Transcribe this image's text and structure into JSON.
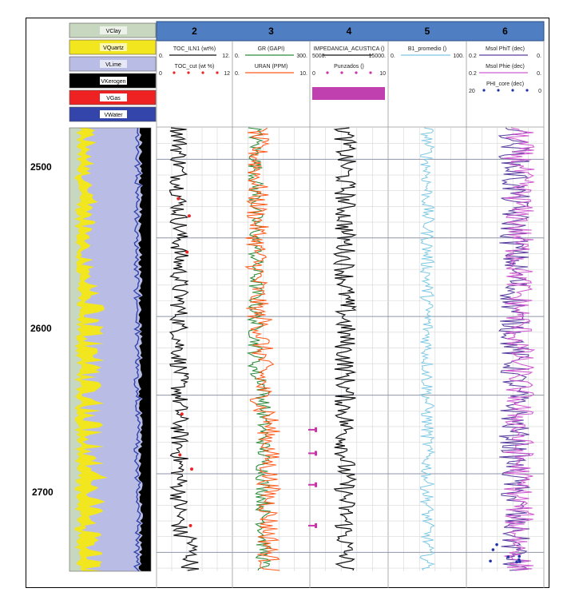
{
  "chart_data": {
    "type": "line",
    "title": "",
    "depth_axis": {
      "ticks": [
        "2500",
        "2600",
        "2700"
      ],
      "range": [
        2480,
        2762
      ]
    },
    "track_numbers": [
      "2",
      "3",
      "4",
      "5",
      "6"
    ],
    "lithology_legend": [
      {
        "label": "VClay",
        "color": "#c8d8c0"
      },
      {
        "label": "VQuartz",
        "color": "#f2e61e"
      },
      {
        "label": "VLime",
        "color": "#b9bde6"
      },
      {
        "label": "VKerogen",
        "color": "#000000"
      },
      {
        "label": "VGas",
        "color": "#ee2222"
      },
      {
        "label": "VWater",
        "color": "#3344aa"
      }
    ],
    "tracks": [
      {
        "number": "2",
        "curves": [
          {
            "name": "TOC_ILN1 (wt%)",
            "min": "0.",
            "max": "12.",
            "color": "#111111",
            "style": "line"
          },
          {
            "name": "TOC_cut (wt %)",
            "min": "0",
            "max": "12",
            "color": "#ee2222",
            "style": "points"
          }
        ]
      },
      {
        "number": "3",
        "curves": [
          {
            "name": "GR (GAPI)",
            "min": "0.",
            "max": "300.",
            "color": "#2e8b3a",
            "style": "line"
          },
          {
            "name": "URAN (PPM)",
            "min": "0.",
            "max": "10.",
            "color": "#ff5a1a",
            "style": "line"
          }
        ]
      },
      {
        "number": "4",
        "curves": [
          {
            "name": "IMPEDANCIA_ACUSTICA ()",
            "min": "5000.",
            "max": "15000.",
            "color": "#111111",
            "style": "line"
          },
          {
            "name": "Punzados ()",
            "min": "0",
            "max": "10",
            "color": "#cc33aa",
            "style": "points"
          }
        ]
      },
      {
        "number": "5",
        "curves": [
          {
            "name": "B1_promedio ()",
            "min": "0.",
            "max": "100.",
            "color": "#7ec8e3",
            "style": "line"
          }
        ]
      },
      {
        "number": "6",
        "curves": [
          {
            "name": "Msol PhiT (dec)",
            "min": "0.2",
            "max": "0.",
            "color": "#5a3fa0",
            "style": "line"
          },
          {
            "name": "Msol Phie (dec)",
            "min": "0.2",
            "max": "0.",
            "color": "#d05ad0",
            "style": "line"
          },
          {
            "name": "PHI_core (dec)",
            "min": "20",
            "max": "0",
            "color": "#2233aa",
            "style": "points"
          }
        ]
      }
    ],
    "perforations_depth": [
      2672,
      2687,
      2707,
      2733
    ],
    "toc_cut_depth": [
      2525,
      2536,
      2559,
      2662,
      2688,
      2697,
      2733
    ]
  }
}
